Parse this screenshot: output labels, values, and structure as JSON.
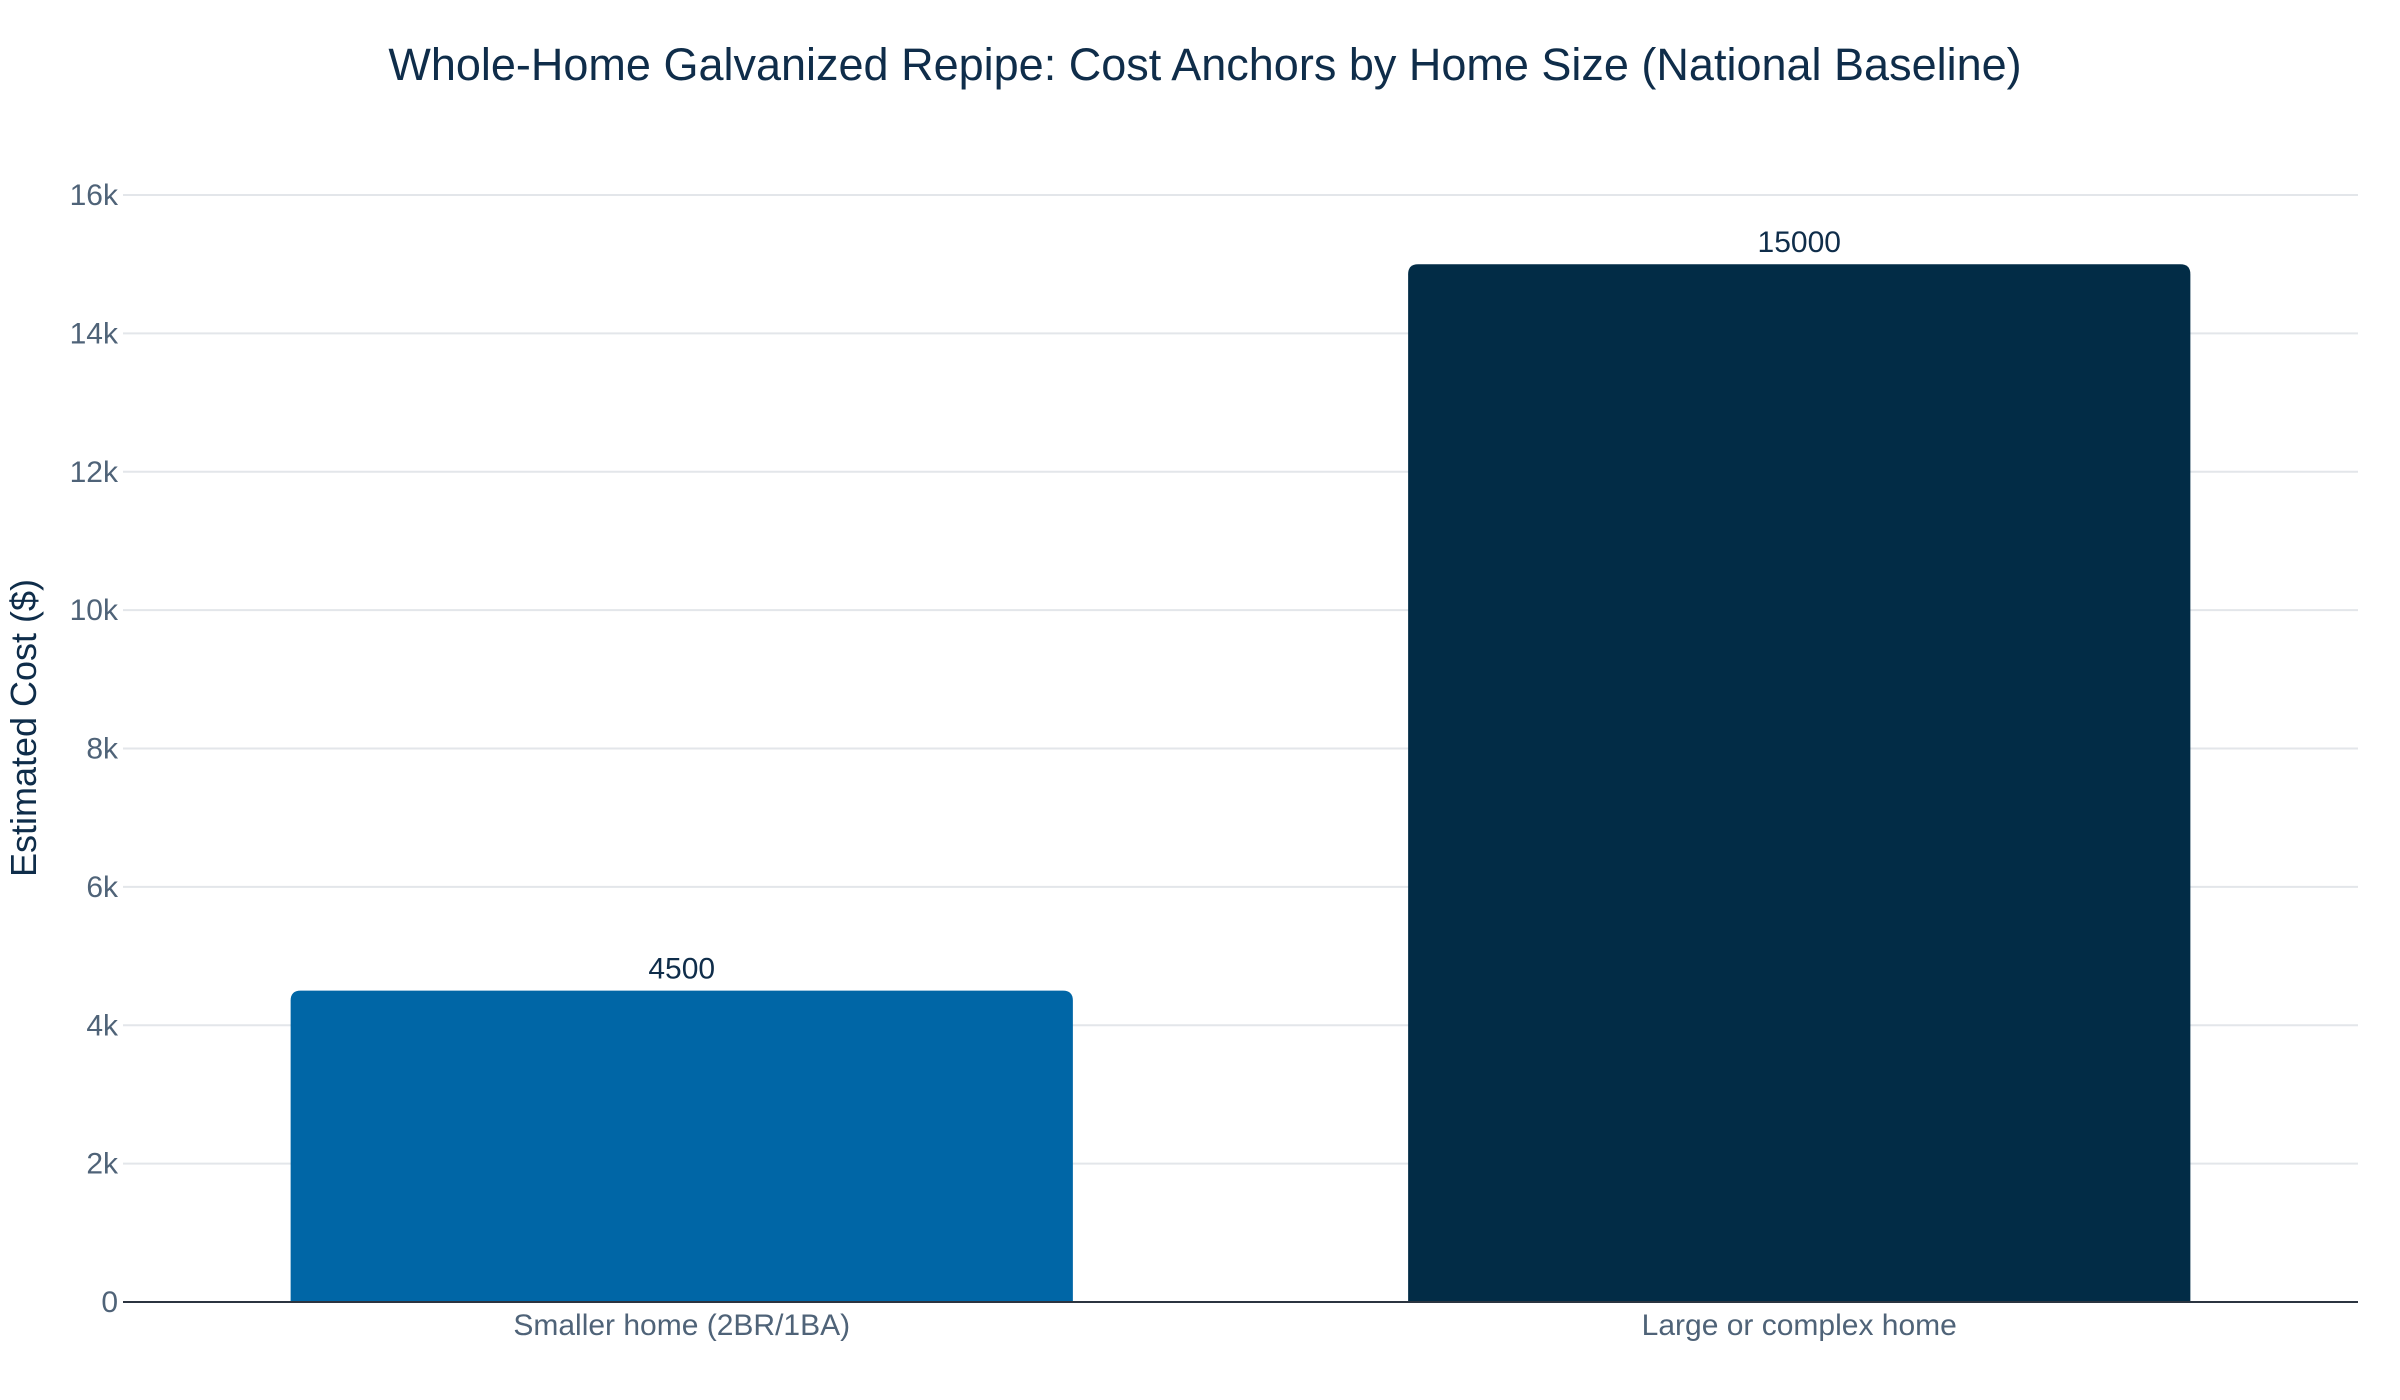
{
  "chart_data": {
    "type": "bar",
    "title": "Whole-Home Galvanized Repipe: Cost Anchors by Home Size (National Baseline)",
    "xlabel": "",
    "ylabel": "Estimated Cost ($)",
    "categories": [
      "Smaller home (2BR/1BA)",
      "Large or complex home"
    ],
    "values": [
      4500,
      15000
    ],
    "value_labels": [
      "4500",
      "15000"
    ],
    "bar_colors": [
      "#0066a6",
      "#022c46"
    ],
    "ylim": [
      0,
      16000
    ],
    "yticks": [
      0,
      2000,
      4000,
      6000,
      8000,
      10000,
      12000,
      14000,
      16000
    ],
    "ytick_labels": [
      "0",
      "2k",
      "4k",
      "6k",
      "8k",
      "10k",
      "12k",
      "14k",
      "16k"
    ],
    "grid": true,
    "legend": "none"
  }
}
